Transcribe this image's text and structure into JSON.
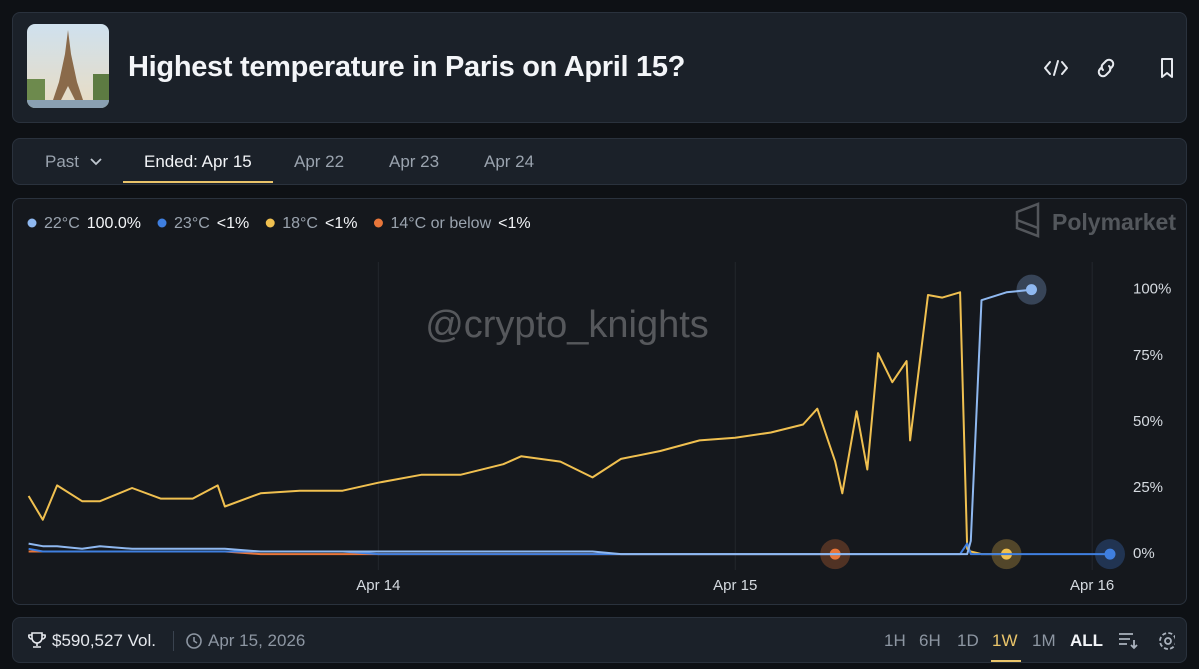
{
  "header": {
    "title": "Highest temperature in Paris on April 15?"
  },
  "tabs": {
    "items": [
      "Past",
      "Ended: Apr 15",
      "Apr 22",
      "Apr 23",
      "Apr 24"
    ],
    "active": 1
  },
  "watermarks": [
    "Polymarket",
    "@crypto_knights"
  ],
  "chart_data": {
    "type": "line",
    "x": [
      13.02,
      13.06,
      13.1,
      13.17,
      13.22,
      13.31,
      13.39,
      13.48,
      13.55,
      13.57,
      13.67,
      13.78,
      13.9,
      14.0,
      14.12,
      14.23,
      14.35,
      14.4,
      14.51,
      14.6,
      14.68,
      14.79,
      14.9,
      15.0,
      15.1,
      15.19,
      15.23,
      15.26,
      15.28,
      15.3,
      15.34,
      15.37,
      15.4,
      15.44,
      15.48,
      15.49,
      15.54,
      15.58,
      15.63,
      15.65,
      15.66,
      15.69,
      15.76,
      15.83,
      15.95,
      16.05
    ],
    "series": [
      {
        "name": "22°C",
        "value_label": "100.0%",
        "color": "#8fb8f0",
        "values": [
          4,
          3,
          3,
          2,
          3,
          2,
          2,
          2,
          2,
          2,
          1,
          1,
          1,
          1,
          1,
          1,
          1,
          1,
          1,
          1,
          0,
          0,
          0,
          0,
          0,
          0,
          0,
          0,
          0,
          0,
          0,
          0,
          0,
          0,
          0,
          0,
          0,
          0,
          0,
          0,
          5,
          96,
          99,
          100,
          null,
          null
        ]
      },
      {
        "name": "23°C",
        "value_label": "<1%",
        "color": "#3f7fe0",
        "values": [
          2,
          1,
          1,
          1,
          1,
          1,
          1,
          1,
          1,
          1,
          1,
          1,
          1,
          0,
          0,
          0,
          0,
          0,
          0,
          0,
          0,
          0,
          0,
          0,
          0,
          0,
          0,
          0,
          0,
          0,
          0,
          0,
          0,
          0,
          0,
          0,
          0,
          0,
          0,
          4,
          0,
          0,
          0,
          0,
          0,
          0
        ]
      },
      {
        "name": "18°C",
        "value_label": "<1%",
        "color": "#f0c050",
        "values": [
          22,
          13,
          26,
          20,
          20,
          25,
          21,
          21,
          26,
          18,
          23,
          24,
          24,
          27,
          30,
          30,
          34,
          37,
          35,
          29,
          36,
          39,
          43,
          44,
          46,
          49,
          55,
          43,
          35,
          23,
          54,
          32,
          76,
          65,
          73,
          43,
          98,
          97,
          99,
          2,
          1,
          0,
          0,
          null,
          null,
          null
        ]
      },
      {
        "name": "14°C or below",
        "value_label": "<1%",
        "color": "#e8763a",
        "values": [
          1,
          1,
          1,
          1,
          1,
          1,
          1,
          1,
          1,
          1,
          0,
          0,
          0,
          0,
          0,
          0,
          0,
          0,
          0,
          0,
          0,
          0,
          0,
          0,
          0,
          0,
          0,
          0,
          0,
          null,
          null,
          null,
          null,
          null,
          null,
          null,
          null,
          null,
          null,
          null,
          null,
          null,
          null,
          null,
          null,
          null
        ]
      }
    ],
    "xlim": [
      13.01,
      16.05
    ],
    "xticks": [
      {
        "value": 14,
        "label": "Apr 14"
      },
      {
        "value": 15,
        "label": "Apr 15"
      },
      {
        "value": 16,
        "label": "Apr 16"
      }
    ],
    "ylim": [
      -6,
      115
    ],
    "yticks": [
      {
        "value": 0,
        "label": "0%"
      },
      {
        "value": 25,
        "label": "25%"
      },
      {
        "value": 50,
        "label": "50%"
      },
      {
        "value": 75,
        "label": "75%"
      },
      {
        "value": 100,
        "label": "100%"
      }
    ],
    "grid": true
  },
  "footer": {
    "volume": "$590,527 Vol.",
    "date": "Apr 15, 2026",
    "ranges": [
      "1H",
      "6H",
      "1D",
      "1W",
      "1M",
      "ALL"
    ],
    "active_range": 3
  }
}
